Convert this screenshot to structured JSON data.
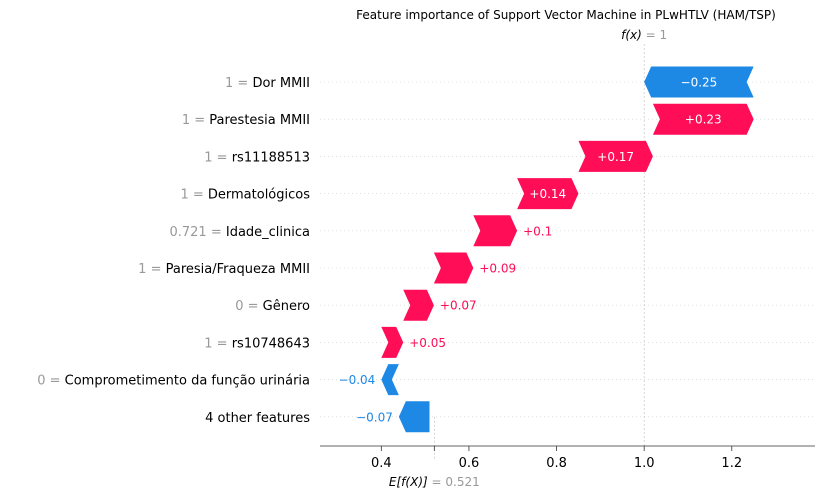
{
  "chart_data": {
    "type": "waterfall",
    "title": "Feature importance of Support Vector Machine in PLwHTLV (HAM/TSP)",
    "fx": {
      "label": "f(x)",
      "value": "1",
      "numeric": 1.0
    },
    "expected": {
      "label": "E[f(X)]",
      "value": "0.521",
      "numeric": 0.521
    },
    "xlim": [
      0.26,
      1.39
    ],
    "xticks": [
      0.4,
      0.6,
      0.8,
      1.0,
      1.2
    ],
    "xtick_labels": [
      "0.4",
      "0.6",
      "0.8",
      "1.0",
      "1.2"
    ],
    "features": [
      {
        "value_text": "1",
        "name": "Dor MMII",
        "contribution": -0.25,
        "label": "−0.25"
      },
      {
        "value_text": "1",
        "name": "Parestesia MMII",
        "contribution": 0.23,
        "label": "+0.23"
      },
      {
        "value_text": "1",
        "name": "rs11188513",
        "contribution": 0.17,
        "label": "+0.17"
      },
      {
        "value_text": "1",
        "name": "Dermatológicos",
        "contribution": 0.14,
        "label": "+0.14"
      },
      {
        "value_text": "0.721",
        "name": "Idade_clinica",
        "contribution": 0.1,
        "label": "+0.1"
      },
      {
        "value_text": "1",
        "name": "Paresia/Fraqueza MMII",
        "contribution": 0.09,
        "label": "+0.09"
      },
      {
        "value_text": "0",
        "name": "Gênero",
        "contribution": 0.07,
        "label": "+0.07"
      },
      {
        "value_text": "1",
        "name": "rs10748643",
        "contribution": 0.05,
        "label": "+0.05"
      },
      {
        "value_text": "0",
        "name": "Comprometimento da função urinária",
        "contribution": -0.04,
        "label": "−0.04"
      },
      {
        "value_text": "",
        "name": "4 other features",
        "contribution": -0.07,
        "label": "−0.07"
      }
    ],
    "colors": {
      "positive": "#ff0d57",
      "negative": "#1e88e5",
      "grid": "#cccccc",
      "axis": "#333333"
    }
  }
}
